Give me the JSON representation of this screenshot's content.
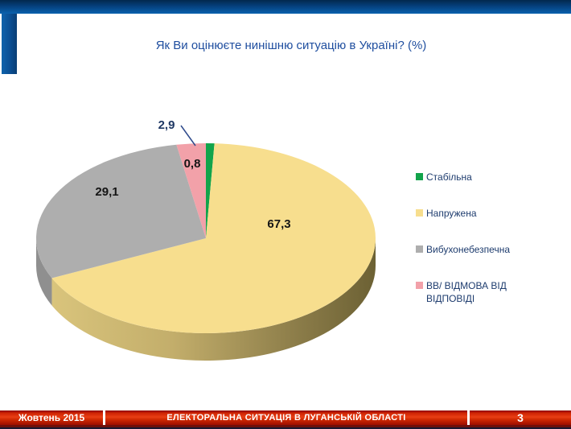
{
  "slide": {
    "title": "Як Ви оцінюєте нинішню ситуацію в Україні? (%)"
  },
  "chart_data": {
    "type": "pie",
    "style": "3d",
    "title": "Як Ви оцінюєте нинішню ситуацію в Україні? (%)",
    "unit": "%",
    "labels": [
      "Стабільна",
      "Напружена",
      "Вибухонебезпечна",
      "ВВ/ ВІДМОВА ВІД ВІДПОВІДІ"
    ],
    "values": [
      2.9,
      67.3,
      29.1,
      0.8
    ],
    "display_values": [
      "2,9",
      "67,3",
      "29,1",
      "0,8"
    ],
    "colors": [
      "#12a44b",
      "#f7de8e",
      "#aeaeae",
      "#f2a1a9"
    ],
    "legend_position": "right",
    "label_colors": {
      "outside": "#1f3864",
      "inside": "#151515"
    }
  },
  "footer": {
    "date": "Жовтень 2015",
    "title": "ЕЛЕКТОРАЛЬНА СИТУАЦІЯ В ЛУГАНСЬКІЙ ОБЛАСТІ",
    "page": "3"
  }
}
